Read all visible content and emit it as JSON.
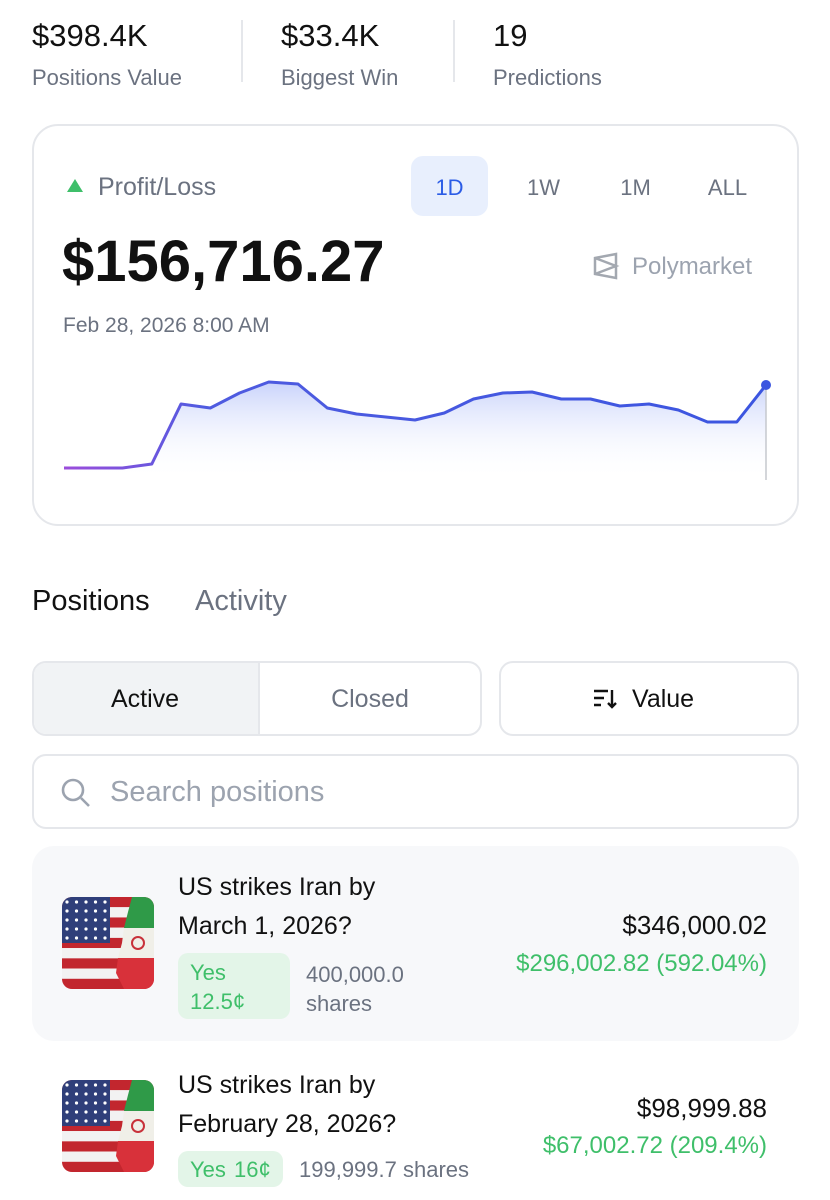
{
  "stats": [
    {
      "value": "$398.4K",
      "label": "Positions Value"
    },
    {
      "value": "$33.4K",
      "label": "Biggest Win"
    },
    {
      "value": "19",
      "label": "Predictions"
    }
  ],
  "pnl": {
    "label": "Profit/Loss",
    "ranges": [
      "1D",
      "1W",
      "1M",
      "ALL"
    ],
    "amount": "$156,716.27",
    "source": "Polymarket",
    "date": "Feb 28, 2026 8:00 AM",
    "chart": {
      "type": "line",
      "values": [
        2,
        2,
        2,
        6,
        66,
        62,
        77,
        88,
        86,
        62,
        56,
        53,
        50,
        57,
        71,
        77,
        78,
        71,
        71,
        64,
        66,
        60,
        48,
        48,
        85
      ]
    }
  },
  "tabs": [
    "Positions",
    "Activity"
  ],
  "filters": [
    "Active",
    "Closed"
  ],
  "sort": "Value",
  "search": "Search positions",
  "positions": [
    {
      "title": "US strikes Iran by March 1, 2026?",
      "outcome": "Yes",
      "price": "12.5¢",
      "shares": "400,000.0 shares",
      "value": "$346,000.02",
      "pnl": "$296,002.82 (592.04%)"
    },
    {
      "title": "US strikes Iran by February 28, 2026?",
      "outcome": "Yes",
      "price": "16¢",
      "shares": "199,999.7 shares",
      "value": "$98,999.88",
      "pnl": "$67,002.72 (209.4%)"
    }
  ]
}
